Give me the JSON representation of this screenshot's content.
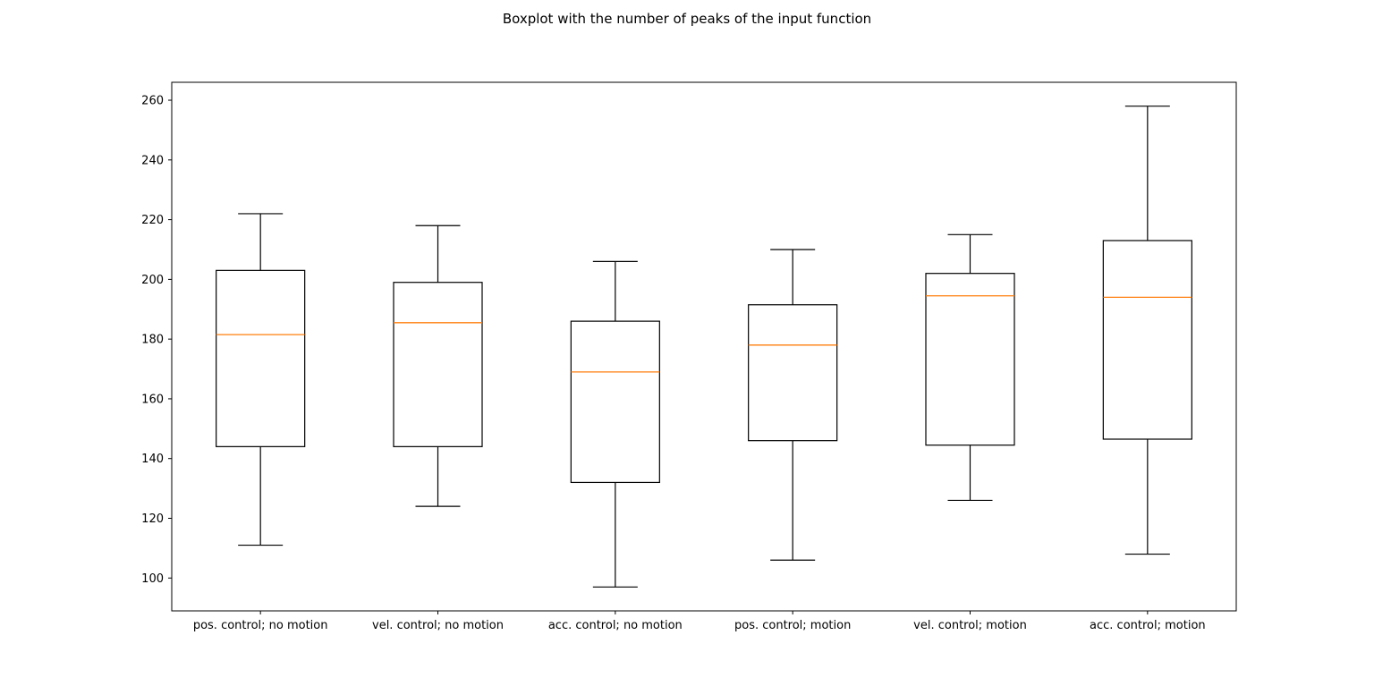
{
  "chart_data": {
    "type": "boxplot",
    "title": "Boxplot with the number of peaks of the input function",
    "xlabel": "",
    "ylabel": "",
    "ylim": [
      89,
      266
    ],
    "yticks": [
      100,
      120,
      140,
      160,
      180,
      200,
      220,
      240,
      260
    ],
    "grid": false,
    "categories": [
      "pos. control; no motion",
      "vel. control; no motion",
      "acc. control; no motion",
      "pos. control; motion",
      "vel. control; motion",
      "acc. control; motion"
    ],
    "boxes": [
      {
        "whisker_low": 111,
        "q1": 144,
        "median": 181.5,
        "q3": 203,
        "whisker_high": 222
      },
      {
        "whisker_low": 124,
        "q1": 144,
        "median": 185.5,
        "q3": 199,
        "whisker_high": 218
      },
      {
        "whisker_low": 97,
        "q1": 132,
        "median": 169,
        "q3": 186,
        "whisker_high": 206
      },
      {
        "whisker_low": 106,
        "q1": 146,
        "median": 178,
        "q3": 191.5,
        "whisker_high": 210
      },
      {
        "whisker_low": 126,
        "q1": 144.5,
        "median": 194.5,
        "q3": 202,
        "whisker_high": 215
      },
      {
        "whisker_low": 108,
        "q1": 146.5,
        "median": 194,
        "q3": 213,
        "whisker_high": 258
      }
    ],
    "colors": {
      "box": "#000000",
      "median": "#ff7f0e",
      "axes": "#000000"
    }
  }
}
